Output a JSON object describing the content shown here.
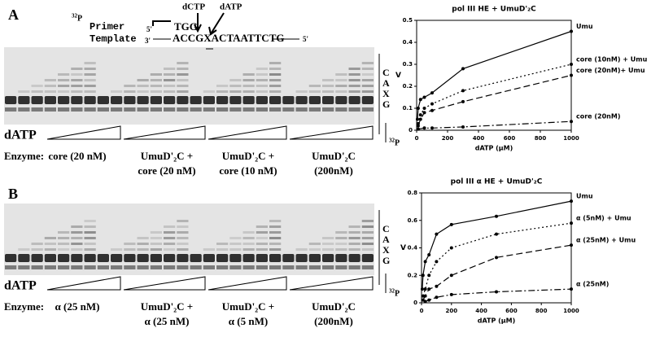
{
  "panel_a": {
    "letter": "A",
    "primer_label": "Primer",
    "template_label": "Template",
    "isotope_mass": "32",
    "isotope_element": "P",
    "primer_5": "5'",
    "template_3": "3'",
    "primer_seq": "TGG",
    "template_seq": "ACCGXACTAATTCTG",
    "template_5": "5'",
    "arrow_labels": [
      "dCTP",
      "dATP"
    ],
    "lane_bases": [
      "C",
      "A",
      "X",
      "G"
    ],
    "substrate": "dATP",
    "enzyme_heading": "Enzyme:",
    "enzymes": [
      [
        "core (20 nM)"
      ],
      [
        "UmuD'₂C +",
        "core (20 nM)"
      ],
      [
        "UmuD'₂C +",
        "core (10 nM)"
      ],
      [
        "UmuD'₂C",
        "(200nM)"
      ]
    ]
  },
  "panel_b": {
    "letter": "B",
    "isotope_mass": "32",
    "isotope_element": "P",
    "lane_bases": [
      "C",
      "A",
      "X",
      "G"
    ],
    "substrate": "dATP",
    "enzyme_heading": "Enzyme:",
    "enzymes": [
      [
        "α (25 nM)"
      ],
      [
        "UmuD'₂C +",
        "α (25 nM)"
      ],
      [
        "UmuD'₂C +",
        "α (5 nM)"
      ],
      [
        "UmuD'₂C",
        "(200nM)"
      ]
    ]
  },
  "chart_data": [
    {
      "type": "scatter",
      "title": "pol III HE + UmuD'₂C",
      "x_label": "dATP (µM)",
      "y_label": "V",
      "xlim": [
        0,
        1000
      ],
      "xticks": [
        0,
        200,
        400,
        600,
        800,
        1000
      ],
      "ylim": [
        0,
        0.5
      ],
      "yticks": [
        0,
        0.1,
        0.2,
        0.3,
        0.4,
        0.5
      ],
      "series": [
        {
          "name": "Umu",
          "color": "#000",
          "dash": "solid",
          "x": [
            5,
            10,
            25,
            50,
            100,
            300,
            1000
          ],
          "values": [
            0.05,
            0.1,
            0.14,
            0.15,
            0.17,
            0.28,
            0.45
          ]
        },
        {
          "name": "core (10nM) + Umu",
          "color": "#000",
          "dash": "dotted",
          "x": [
            10,
            25,
            50,
            100,
            300,
            1000
          ],
          "values": [
            0.03,
            0.07,
            0.1,
            0.12,
            0.18,
            0.3
          ]
        },
        {
          "name": "core (20nM)+ Umu",
          "color": "#000",
          "dash": "dashed",
          "x": [
            10,
            25,
            50,
            100,
            300,
            1000
          ],
          "values": [
            0.02,
            0.05,
            0.08,
            0.09,
            0.13,
            0.25
          ]
        },
        {
          "name": "core  (20nM)",
          "color": "#000",
          "dash": "dashdot",
          "x": [
            10,
            50,
            100,
            300,
            1000
          ],
          "values": [
            0.005,
            0.01,
            0.01,
            0.015,
            0.04
          ]
        }
      ]
    },
    {
      "type": "scatter",
      "title": "pol III α HE + UmuD'₂C",
      "x_label": "dATP (µM)",
      "y_label": "V",
      "xlim": [
        0,
        1000
      ],
      "xticks": [
        0,
        200,
        400,
        600,
        800,
        1000
      ],
      "ylim": [
        0,
        0.8
      ],
      "yticks": [
        0,
        0.2,
        0.4,
        0.6,
        0.8
      ],
      "series": [
        {
          "name": "Umu",
          "color": "#000",
          "dash": "solid",
          "x": [
            5,
            10,
            25,
            50,
            100,
            200,
            500,
            1000
          ],
          "values": [
            0.1,
            0.2,
            0.3,
            0.35,
            0.5,
            0.57,
            0.63,
            0.74
          ]
        },
        {
          "name": "α (5nM) + Umu",
          "color": "#000",
          "dash": "dotted",
          "x": [
            10,
            25,
            50,
            100,
            200,
            500,
            1000
          ],
          "values": [
            0.05,
            0.1,
            0.2,
            0.3,
            0.4,
            0.5,
            0.58
          ]
        },
        {
          "name": "α (25nM) + Umu",
          "color": "#000",
          "dash": "dashed",
          "x": [
            10,
            25,
            50,
            100,
            200,
            500,
            1000
          ],
          "values": [
            0.02,
            0.05,
            0.1,
            0.12,
            0.2,
            0.33,
            0.42
          ]
        },
        {
          "name": "α (25nM)",
          "color": "#000",
          "dash": "dashdot",
          "x": [
            25,
            50,
            100,
            200,
            500,
            1000
          ],
          "values": [
            0.01,
            0.02,
            0.04,
            0.06,
            0.08,
            0.1
          ]
        }
      ]
    }
  ]
}
